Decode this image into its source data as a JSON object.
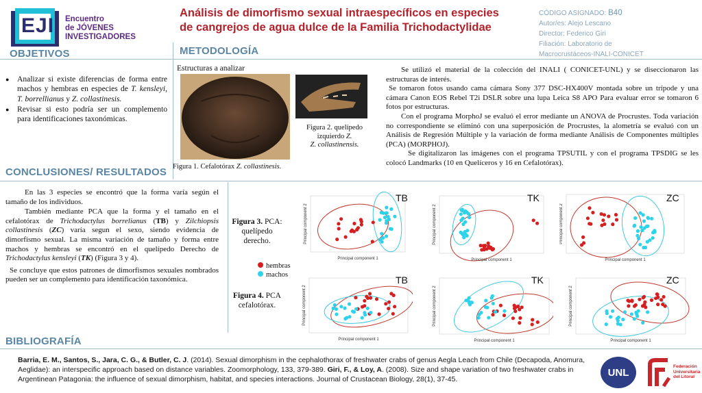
{
  "logo": {
    "letters": "EJI",
    "line1": "Encuentro",
    "line2": "de JÓVENES",
    "line3": "INVESTIGADORES"
  },
  "title": {
    "line1": "Análisis de dimorfismo sexual intraespecíficos en especies",
    "line2": "de cangrejos de agua dulce de la Familia Trichodactylidae"
  },
  "meta": {
    "code_label": "CÓDIGO ASIGNADO:",
    "code_value": "B40",
    "authors": "Autor/es: Alejo Lescano",
    "director": "Director: Federico Giri",
    "affiliation1": "Filiación: Laboratorio de",
    "affiliation2": "Macrocrustáceos-INALI-CONICET"
  },
  "objetivos": {
    "heading": "OBJETIVOS",
    "b1_pre": "Analizar si existe diferencias de forma entre machos y hembras en especies de",
    "b1_sp1": "T. kensleyi",
    "b1_sep1": ",",
    "b1_sp2": "T. borrellianus",
    "b1_sep2": "y",
    "b1_sp3": "Z. collastinesis.",
    "b2": "Revisar si esto podría ser un complemento para identificaciones taxonómicas."
  },
  "metodologia": {
    "heading": "METODOLOGÍA",
    "structures_label": "Estructuras a analizar",
    "fig1_pre": "Figura 1. Cefalotórax",
    "fig1_sp": "Z. collastinesis.",
    "fig2_l1": "Figura 2. quelípedo",
    "fig2_l2": "izquierdo",
    "fig2_sp": "Z. collastinensis.",
    "p1": "Se utilizó el material de la colección del INALI ( CONICET-UNL) y se diseccionaron las estructuras de interés.",
    "p2": "Se tomaron fotos usando cama cámara Sony 377 DSC-HX400V montada sobre un trípode y una cámara Canon EOS Rebel T2i DSLR sobre una lupa Leica S8 APO Para evaluar error se tomaron 6 fotos por estructuras.",
    "p3": "Con el programa MorphoJ se evaluó el error mediante un ANOVA de Procrustes. Toda variación no correspondiente se eliminó con una superposición de Procrustes, la alometría se evaluó con un Análisis de Regresión Múltiple y la variación de forma mediante Análisis de Componentes múltiples (PCA) (MORPHOJ).",
    "p4": "Se digitalizaron las imágenes con el programa TPSUTIL y con el programa TPSDIG se les colocó Landmarks (10 en Quelíceros y 16 en Cefalotórax)."
  },
  "conclusiones": {
    "heading": "CONCLUSIONES/ RESULTADOS",
    "p1": "En las 3 especies se encontró que la forma varía según el tamaño de los individuos.",
    "p2_a": "También mediante PCA que la forma y el tamaño en el cefalotórax de",
    "p2_sp1": "Trichodactylus borrelianus",
    "p2_ab1": "TB",
    "p2_b": "y",
    "p2_sp2": "Zilchiopsis collastinesis",
    "p2_ab2": "ZC",
    "p2_c": "varía segun el sexo, siendo evidencia de dimorfismo sexual. La misma variación de tamaño y forma entre machos y hembras se encontró en el quelípedo Derecho de",
    "p2_sp3": "Trichodactylus kensleyi",
    "p2_ab3": "TK",
    "p2_d": "(Figura 3 y 4).",
    "p3": "Se concluye que estos patrones de dimorfismos sexuales nombrados pueden ser un complemento para identificación taxonómica."
  },
  "figures": {
    "fig3_l1": "Figura 3.",
    "fig3_l2": "PCA:",
    "fig3_l3": "quelípedo",
    "fig3_l4": "derecho.",
    "fig4_l1": "Figura 4.",
    "fig4_l2": "PCA",
    "fig4_l3": "cefalotórax.",
    "legend_hembras": "hembras",
    "legend_machos": "machos",
    "color_hembras": "#d42020",
    "color_machos": "#2ed3ea",
    "ylabel": "Principal component 2",
    "xlabel": "Principal component 1",
    "tags": [
      "TB",
      "TK",
      "ZC",
      "TB",
      "TK",
      "ZC"
    ]
  },
  "bibliografia": {
    "heading": "BIBLIOGRAFÍA",
    "a1": "Barria, E. M., Santos, S., Jara, C. G., & Butler, C. J",
    "r1": ". (2014). Sexual dimorphism in the cephalothorax of freshwater crabs of genus Aegla Leach from Chile (Decapoda, Anomura, Aeglidae): an interspecific approach based on distance variables. Zoomorphology, 133, 379-389.",
    "a2": "Giri, F., & Loy, A",
    "r2": ". (2008). Size and shape variation of two freshwater crabs in Argentinean Patagonia: the influence of sexual dimorphism, habitat, and species interactions. Journal of Crustacean Biology, 28(1), 37-45."
  },
  "logos": {
    "unl": "UNL",
    "fu_l1": "Federación",
    "fu_l2": "Universitaria",
    "fu_l3": "del Litoral"
  }
}
